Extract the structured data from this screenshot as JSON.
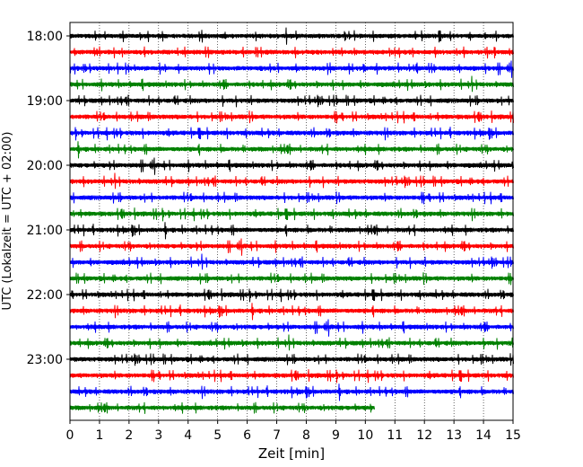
{
  "chart_data": {
    "type": "line",
    "title": "",
    "xlabel": "Zeit  [min]",
    "ylabel": "UTC (Lokalzeit = UTC + 02:00)",
    "xlim": [
      0,
      15
    ],
    "xticks": [
      "0",
      "1",
      "2",
      "3",
      "4",
      "5",
      "6",
      "7",
      "8",
      "9",
      "10",
      "11",
      "12",
      "13",
      "14",
      "15"
    ],
    "yticks": [
      "18:00",
      "19:00",
      "20:00",
      "21:00",
      "22:00",
      "23:00"
    ],
    "grid": "vertical dotted",
    "trace_colors": [
      "#000000",
      "#ff0000",
      "#0000ff",
      "#008000"
    ],
    "traces": [
      {
        "start": "18:00",
        "x_end": 15
      },
      {
        "start": "18:15",
        "x_end": 15
      },
      {
        "start": "18:30",
        "x_end": 15
      },
      {
        "start": "18:45",
        "x_end": 15
      },
      {
        "start": "19:00",
        "x_end": 15
      },
      {
        "start": "19:15",
        "x_end": 15
      },
      {
        "start": "19:30",
        "x_end": 15
      },
      {
        "start": "19:45",
        "x_end": 15
      },
      {
        "start": "20:00",
        "x_end": 15
      },
      {
        "start": "20:15",
        "x_end": 15
      },
      {
        "start": "20:30",
        "x_end": 15
      },
      {
        "start": "20:45",
        "x_end": 15
      },
      {
        "start": "21:00",
        "x_end": 15
      },
      {
        "start": "21:15",
        "x_end": 15
      },
      {
        "start": "21:30",
        "x_end": 15
      },
      {
        "start": "21:45",
        "x_end": 15
      },
      {
        "start": "22:00",
        "x_end": 15
      },
      {
        "start": "22:15",
        "x_end": 15
      },
      {
        "start": "22:30",
        "x_end": 15
      },
      {
        "start": "22:45",
        "x_end": 15
      },
      {
        "start": "23:00",
        "x_end": 15
      },
      {
        "start": "23:15",
        "x_end": 15
      },
      {
        "start": "23:30",
        "x_end": 15
      },
      {
        "start": "23:45",
        "x_end": 10.3
      }
    ]
  }
}
